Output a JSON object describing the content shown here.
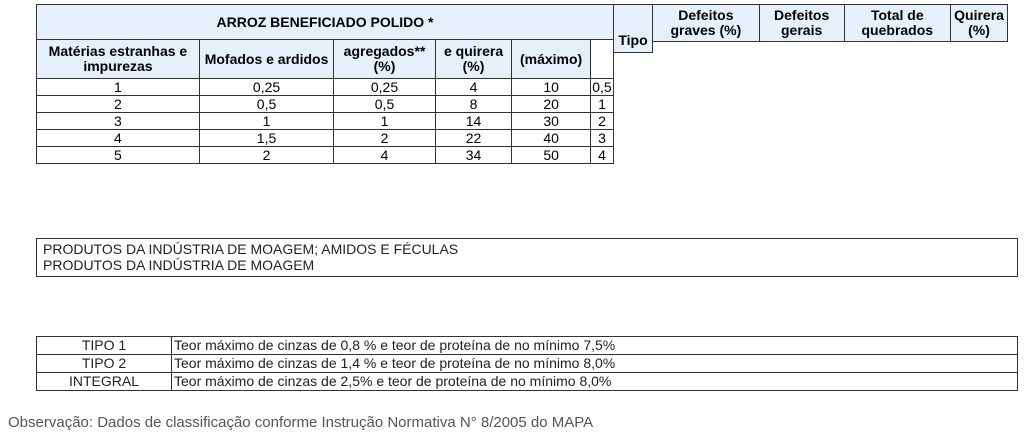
{
  "rice_table": {
    "title": "ARROZ BENEFICIADO POLIDO *",
    "headers": [
      "Matérias estranhas e impurezas",
      "Mofados e ardidos",
      "agregados** (%)",
      "e quirera (%)",
      "(máximo)",
      ""
    ],
    "rows": [
      [
        "1",
        "0,25",
        "0,25",
        "4",
        "10",
        "0,5"
      ],
      [
        "2",
        "0,5",
        "0,5",
        "8",
        "20",
        "1"
      ],
      [
        "3",
        "1",
        "1",
        "14",
        "30",
        "2"
      ],
      [
        "4",
        "1,5",
        "2",
        "22",
        "40",
        "3"
      ],
      [
        "5",
        "2",
        "4",
        "34",
        "50",
        "4"
      ]
    ]
  },
  "tipo_header": "Tipo",
  "right_headers": [
    "Defeitos graves (%)",
    "Defeitos gerais",
    "Total de quebrados",
    "Quirera (%)"
  ],
  "products_box": {
    "line1": "PRODUTOS DA INDÚSTRIA DE MOAGEM; AMIDOS E FÉCULAS",
    "line2": "PRODUTOS DA INDÚSTRIA DE MOAGEM"
  },
  "flour_table": [
    {
      "type": "TIPO 1",
      "desc": "Teor máximo de cinzas de 0,8 % e teor de proteína de no mínimo 7,5%"
    },
    {
      "type": "TIPO 2",
      "desc": "Teor máximo de cinzas de 1,4 % e teor de proteína de no mínimo 8,0%"
    },
    {
      "type": "INTEGRAL",
      "desc": "Teor máximo de cinzas de 2,5% e teor de proteína de no mínimo 8,0%"
    }
  ],
  "note": "Observação: Dados de classificação conforme Instrução Normativa N° 8/2005 do MAPA"
}
